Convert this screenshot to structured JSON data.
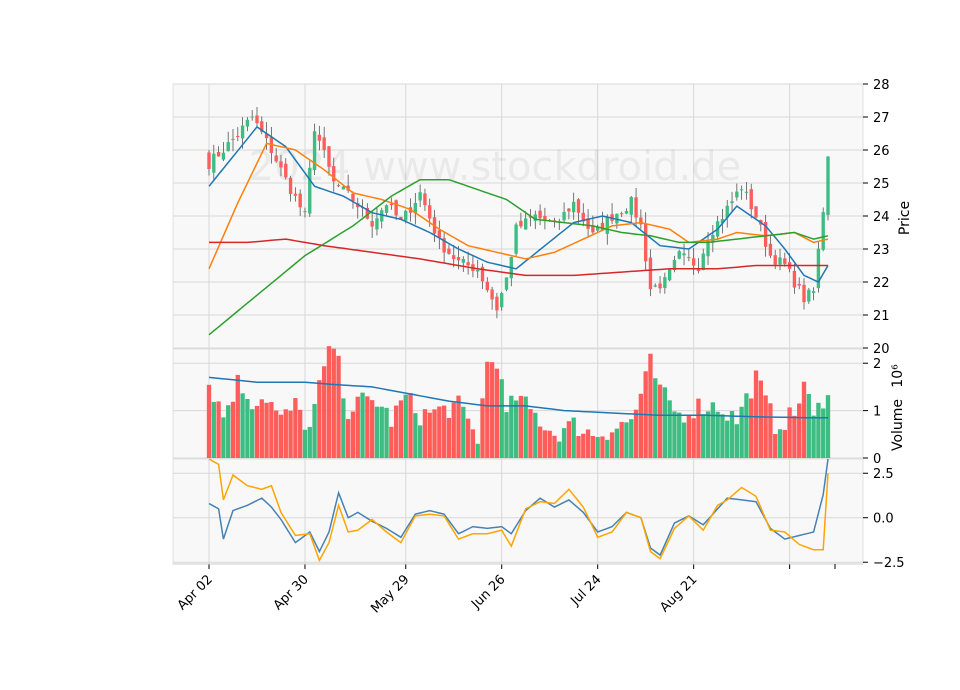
{
  "chart_data": {
    "type": "candlestick",
    "watermark": "2024 www.stockdroid.de",
    "x_ticks": [
      "Apr 02",
      "Apr 30",
      "May 29",
      "Jun 26",
      "Jul 24",
      "Aug 21"
    ],
    "price_panel": {
      "ylabel": "Price",
      "ylim": [
        20,
        28
      ],
      "yticks": [
        "20",
        "21",
        "22",
        "23",
        "24",
        "25",
        "26",
        "27",
        "28"
      ],
      "close_start": 25.6,
      "close_end": 25.8,
      "low": 20.5,
      "high": 27.5,
      "close_anchors": [
        [
          0,
          25.6
        ],
        [
          5,
          26.3
        ],
        [
          9,
          27.0
        ],
        [
          13,
          26.0
        ],
        [
          16,
          25.1
        ],
        [
          20,
          24.0
        ],
        [
          22,
          26.7
        ],
        [
          26,
          25.0
        ],
        [
          30,
          24.5
        ],
        [
          34,
          23.8
        ],
        [
          37,
          24.4
        ],
        [
          40,
          23.8
        ],
        [
          44,
          24.7
        ],
        [
          48,
          23.2
        ],
        [
          52,
          22.6
        ],
        [
          56,
          22.4
        ],
        [
          60,
          21.2
        ],
        [
          62,
          22.1
        ],
        [
          64,
          23.6
        ],
        [
          68,
          24.0
        ],
        [
          72,
          23.7
        ],
        [
          76,
          24.4
        ],
        [
          80,
          23.4
        ],
        [
          84,
          24.0
        ],
        [
          88,
          24.4
        ],
        [
          90,
          23.7
        ],
        [
          92,
          21.8
        ],
        [
          95,
          22.0
        ],
        [
          98,
          22.8
        ],
        [
          102,
          22.5
        ],
        [
          104,
          23.4
        ],
        [
          107,
          24.0
        ],
        [
          111,
          24.9
        ],
        [
          114,
          24.0
        ],
        [
          117,
          22.8
        ],
        [
          120,
          22.5
        ],
        [
          124,
          21.5
        ],
        [
          126,
          21.7
        ],
        [
          128,
          24.2
        ],
        [
          129,
          25.8
        ]
      ],
      "overlays": [
        {
          "name": "fast MA",
          "color": "#1f77b4",
          "anchors": [
            [
              0,
              24.9
            ],
            [
              10,
              26.7
            ],
            [
              16,
              26.1
            ],
            [
              22,
              24.9
            ],
            [
              28,
              24.6
            ],
            [
              34,
              24.1
            ],
            [
              40,
              23.9
            ],
            [
              46,
              23.5
            ],
            [
              52,
              23.0
            ],
            [
              58,
              22.6
            ],
            [
              64,
              22.4
            ],
            [
              70,
              23.1
            ],
            [
              76,
              23.8
            ],
            [
              82,
              24.0
            ],
            [
              88,
              23.8
            ],
            [
              94,
              23.1
            ],
            [
              100,
              23.0
            ],
            [
              106,
              23.6
            ],
            [
              110,
              24.3
            ],
            [
              116,
              23.7
            ],
            [
              120,
              23.0
            ],
            [
              124,
              22.2
            ],
            [
              127,
              22.0
            ],
            [
              129,
              22.5
            ]
          ]
        },
        {
          "name": "medium MA",
          "color": "#ff7f0e",
          "anchors": [
            [
              0,
              22.4
            ],
            [
              6,
              24.4
            ],
            [
              12,
              26.2
            ],
            [
              18,
              26.0
            ],
            [
              24,
              25.4
            ],
            [
              30,
              24.7
            ],
            [
              36,
              24.5
            ],
            [
              42,
              24.2
            ],
            [
              48,
              23.6
            ],
            [
              54,
              23.1
            ],
            [
              60,
              22.9
            ],
            [
              66,
              22.7
            ],
            [
              72,
              22.9
            ],
            [
              78,
              23.3
            ],
            [
              84,
              23.7
            ],
            [
              90,
              23.8
            ],
            [
              96,
              23.6
            ],
            [
              100,
              23.2
            ],
            [
              106,
              23.3
            ],
            [
              110,
              23.5
            ],
            [
              116,
              23.4
            ],
            [
              122,
              23.5
            ],
            [
              126,
              23.2
            ],
            [
              129,
              23.3
            ]
          ]
        },
        {
          "name": "slow MA",
          "color": "#2ca02c",
          "anchors": [
            [
              0,
              20.4
            ],
            [
              10,
              21.6
            ],
            [
              20,
              22.8
            ],
            [
              30,
              23.7
            ],
            [
              38,
              24.6
            ],
            [
              44,
              25.1
            ],
            [
              50,
              25.1
            ],
            [
              56,
              24.8
            ],
            [
              62,
              24.5
            ],
            [
              68,
              23.9
            ],
            [
              74,
              23.8
            ],
            [
              80,
              23.7
            ],
            [
              86,
              23.5
            ],
            [
              92,
              23.4
            ],
            [
              98,
              23.2
            ],
            [
              104,
              23.2
            ],
            [
              110,
              23.3
            ],
            [
              116,
              23.4
            ],
            [
              122,
              23.5
            ],
            [
              126,
              23.3
            ],
            [
              129,
              23.4
            ]
          ]
        },
        {
          "name": "long MA",
          "color": "#d62728",
          "anchors": [
            [
              0,
              23.2
            ],
            [
              8,
              23.2
            ],
            [
              16,
              23.3
            ],
            [
              24,
              23.1
            ],
            [
              34,
              22.9
            ],
            [
              44,
              22.7
            ],
            [
              56,
              22.4
            ],
            [
              66,
              22.2
            ],
            [
              76,
              22.2
            ],
            [
              86,
              22.3
            ],
            [
              96,
              22.4
            ],
            [
              106,
              22.4
            ],
            [
              114,
              22.5
            ],
            [
              122,
              22.5
            ],
            [
              129,
              22.5
            ]
          ]
        }
      ]
    },
    "volume_panel": {
      "ylabel": "Volume",
      "ylabel_exponent": "10⁶",
      "ylim": [
        0,
        2.3
      ],
      "yticks": [
        "0",
        "1",
        "2"
      ],
      "up_color": "#3ebd82",
      "down_color": "#ff5c5c",
      "ma_color": "#1f77b4",
      "volume_anchors": [
        [
          0,
          1.6
        ],
        [
          3,
          0.9
        ],
        [
          6,
          1.6
        ],
        [
          9,
          1.2
        ],
        [
          12,
          1.3
        ],
        [
          15,
          0.8
        ],
        [
          18,
          1.1
        ],
        [
          21,
          0.6
        ],
        [
          24,
          1.9
        ],
        [
          26,
          2.4
        ],
        [
          29,
          1.0
        ],
        [
          32,
          1.2
        ],
        [
          35,
          1.2
        ],
        [
          38,
          0.8
        ],
        [
          41,
          1.3
        ],
        [
          44,
          0.9
        ],
        [
          48,
          1.0
        ],
        [
          52,
          1.1
        ],
        [
          56,
          0.4
        ],
        [
          58,
          2.0
        ],
        [
          60,
          2.1
        ],
        [
          62,
          0.9
        ],
        [
          64,
          1.3
        ],
        [
          68,
          0.9
        ],
        [
          72,
          0.5
        ],
        [
          76,
          0.7
        ],
        [
          80,
          0.5
        ],
        [
          84,
          0.6
        ],
        [
          88,
          0.8
        ],
        [
          90,
          1.3
        ],
        [
          92,
          2.0
        ],
        [
          94,
          1.4
        ],
        [
          98,
          0.9
        ],
        [
          102,
          1.1
        ],
        [
          106,
          1.1
        ],
        [
          110,
          0.8
        ],
        [
          114,
          1.7
        ],
        [
          118,
          0.7
        ],
        [
          122,
          0.9
        ],
        [
          124,
          1.6
        ],
        [
          126,
          0.8
        ],
        [
          129,
          1.5
        ]
      ],
      "ma_anchors": [
        [
          0,
          1.7
        ],
        [
          10,
          1.6
        ],
        [
          20,
          1.6
        ],
        [
          26,
          1.55
        ],
        [
          34,
          1.5
        ],
        [
          42,
          1.35
        ],
        [
          50,
          1.2
        ],
        [
          58,
          1.1
        ],
        [
          66,
          1.1
        ],
        [
          74,
          1.0
        ],
        [
          84,
          0.95
        ],
        [
          94,
          0.9
        ],
        [
          104,
          0.9
        ],
        [
          114,
          0.87
        ],
        [
          124,
          0.85
        ],
        [
          129,
          0.85
        ]
      ]
    },
    "oscillator_panel": {
      "ylim": [
        -2.6,
        3.3
      ],
      "yticks": [
        "2.5",
        "0.0",
        "−2.5"
      ],
      "series": [
        {
          "color": "#4682b4",
          "anchors": [
            [
              0,
              0.8
            ],
            [
              2,
              0.5
            ],
            [
              3,
              -1.2
            ],
            [
              5,
              0.4
            ],
            [
              8,
              0.7
            ],
            [
              11,
              1.1
            ],
            [
              13,
              0.6
            ],
            [
              15,
              -0.1
            ],
            [
              18,
              -1.4
            ],
            [
              21,
              -0.8
            ],
            [
              23,
              -1.9
            ],
            [
              25,
              -0.8
            ],
            [
              27,
              1.4
            ],
            [
              29,
              0.0
            ],
            [
              31,
              0.3
            ],
            [
              34,
              -0.2
            ],
            [
              37,
              -0.6
            ],
            [
              40,
              -1.1
            ],
            [
              43,
              0.2
            ],
            [
              46,
              0.4
            ],
            [
              49,
              0.2
            ],
            [
              52,
              -0.9
            ],
            [
              55,
              -0.5
            ],
            [
              58,
              -0.6
            ],
            [
              61,
              -0.5
            ],
            [
              63,
              -0.9
            ],
            [
              66,
              0.4
            ],
            [
              69,
              1.1
            ],
            [
              72,
              0.6
            ],
            [
              75,
              1.0
            ],
            [
              78,
              0.3
            ],
            [
              81,
              -0.8
            ],
            [
              84,
              -0.5
            ],
            [
              87,
              0.3
            ],
            [
              90,
              0.0
            ],
            [
              92,
              -1.7
            ],
            [
              94,
              -2.1
            ],
            [
              97,
              -0.3
            ],
            [
              100,
              0.1
            ],
            [
              103,
              -0.4
            ],
            [
              106,
              0.5
            ],
            [
              108,
              1.1
            ],
            [
              111,
              1.0
            ],
            [
              114,
              0.9
            ],
            [
              117,
              -0.6
            ],
            [
              120,
              -1.2
            ],
            [
              123,
              -1.0
            ],
            [
              126,
              -0.8
            ],
            [
              128,
              1.3
            ],
            [
              129,
              3.3
            ]
          ]
        },
        {
          "color": "#ffa500",
          "anchors": [
            [
              0,
              3.3
            ],
            [
              2,
              3.0
            ],
            [
              3,
              1.0
            ],
            [
              5,
              2.4
            ],
            [
              8,
              1.8
            ],
            [
              11,
              1.6
            ],
            [
              13,
              1.8
            ],
            [
              15,
              0.3
            ],
            [
              18,
              -1.0
            ],
            [
              21,
              -0.9
            ],
            [
              23,
              -2.4
            ],
            [
              25,
              -1.4
            ],
            [
              27,
              0.7
            ],
            [
              29,
              -0.8
            ],
            [
              31,
              -0.7
            ],
            [
              34,
              -0.1
            ],
            [
              37,
              -0.8
            ],
            [
              40,
              -1.4
            ],
            [
              43,
              0.1
            ],
            [
              46,
              0.2
            ],
            [
              49,
              0.1
            ],
            [
              52,
              -1.2
            ],
            [
              55,
              -0.9
            ],
            [
              58,
              -0.9
            ],
            [
              61,
              -0.7
            ],
            [
              63,
              -1.6
            ],
            [
              66,
              0.5
            ],
            [
              69,
              0.9
            ],
            [
              72,
              0.8
            ],
            [
              75,
              1.6
            ],
            [
              78,
              0.6
            ],
            [
              81,
              -1.1
            ],
            [
              84,
              -0.8
            ],
            [
              87,
              0.3
            ],
            [
              90,
              0.0
            ],
            [
              92,
              -1.9
            ],
            [
              94,
              -2.3
            ],
            [
              97,
              -0.6
            ],
            [
              100,
              0.1
            ],
            [
              103,
              -0.7
            ],
            [
              106,
              0.7
            ],
            [
              108,
              1.0
            ],
            [
              111,
              1.7
            ],
            [
              114,
              1.2
            ],
            [
              117,
              -0.7
            ],
            [
              120,
              -0.8
            ],
            [
              123,
              -1.5
            ],
            [
              126,
              -1.8
            ],
            [
              128,
              -1.8
            ],
            [
              129,
              2.5
            ]
          ]
        }
      ]
    }
  }
}
